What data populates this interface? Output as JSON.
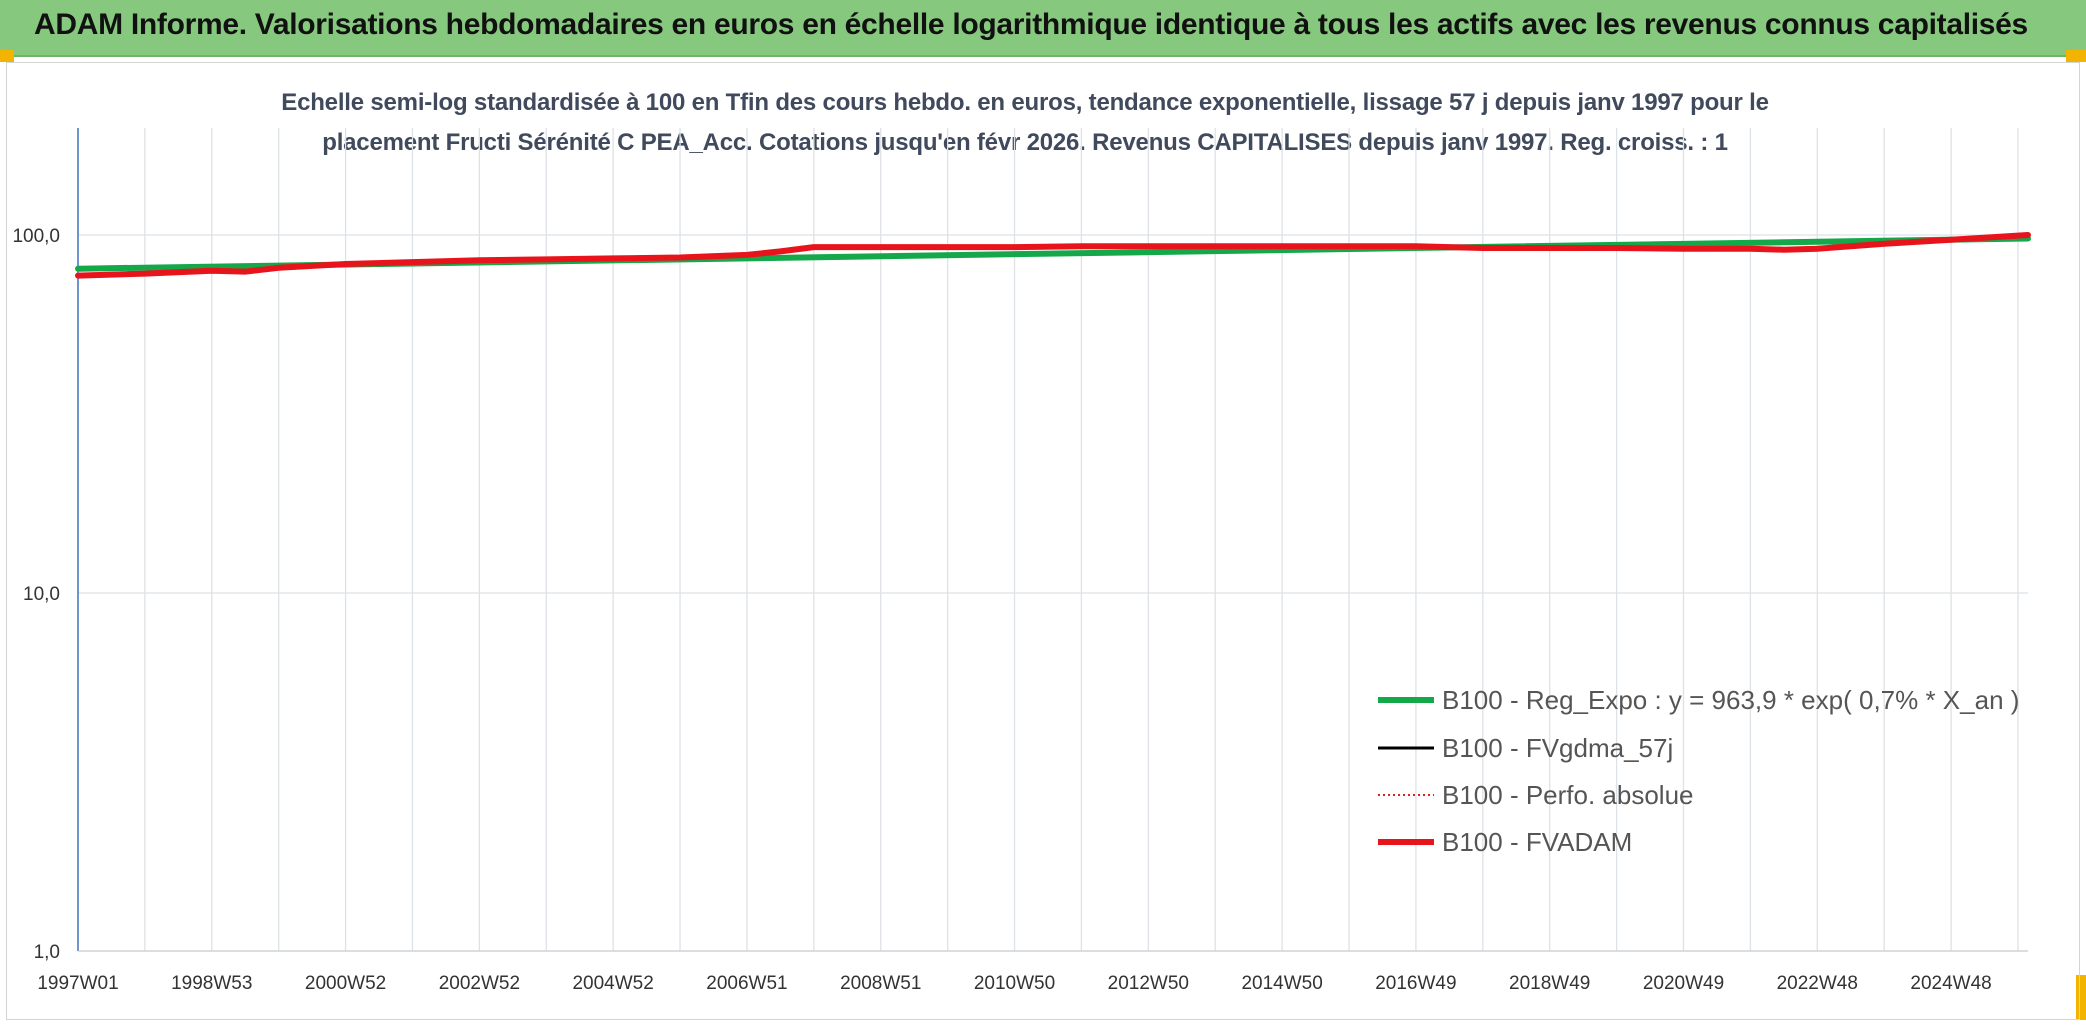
{
  "header": {
    "title": "ADAM Informe. Valorisations hebdomadaires en euros en échelle logarithmique identique à tous les actifs avec les revenus connus capitalisés"
  },
  "colors": {
    "header_bg": "#86c97e",
    "corner_accent": "#f2b400",
    "reg_expo": "#14a84a",
    "fvgdma": "#000000",
    "perfo": "#e0201c",
    "fvadam": "#e8141c"
  },
  "chart_data": {
    "type": "line",
    "title_line1": "Echelle semi-log standardisée à 100 en Tfin des cours hebdo. en euros, tendance exponentielle, lissage 57 j depuis janv 1997 pour le",
    "title_line2": "placement Fructi Sérénité C PEA_Acc. Cotations jusqu'en févr 2026. Revenus CAPITALISES depuis janv 1997. Reg. croiss. : 1",
    "y_scale": "log",
    "ylim": [
      1,
      200
    ],
    "y_ticks": [
      1,
      10,
      100
    ],
    "y_tick_labels": [
      "1,0",
      "10,0",
      "100,0"
    ],
    "xlim": [
      1997.0,
      2026.15
    ],
    "x_ticks": [
      1997.0,
      1999.0,
      2001.0,
      2003.0,
      2005.0,
      2007.0,
      2009.0,
      2011.0,
      2013.0,
      2015.0,
      2017.0,
      2019.0,
      2021.0,
      2023.0,
      2025.0
    ],
    "x_tick_labels": [
      "1997W01",
      "1998W53",
      "2000W52",
      "2002W52",
      "2004W52",
      "2006W51",
      "2008W51",
      "2010W50",
      "2012W50",
      "2014W50",
      "2016W49",
      "2018W49",
      "2020W49",
      "2022W48",
      "2024W48"
    ],
    "x_gridlines": [
      1997.0,
      1998.0,
      1999.0,
      2000.0,
      2001.0,
      2002.0,
      2003.0,
      2004.0,
      2005.0,
      2006.0,
      2007.0,
      2008.0,
      2009.0,
      2010.0,
      2011.0,
      2012.0,
      2013.0,
      2014.0,
      2015.0,
      2016.0,
      2017.0,
      2018.0,
      2019.0,
      2020.0,
      2021.0,
      2022.0,
      2023.0,
      2024.0,
      2025.0,
      2026.0
    ],
    "legend_position": "right, lower middle",
    "series": [
      {
        "name": "B100 - Reg_Expo : y = 963,9 * exp( 0,7% *  X_an )",
        "color": "#14a84a",
        "style": "solid",
        "x": [
          1997.0,
          2026.15
        ],
        "y": [
          80.5,
          97.8
        ]
      },
      {
        "name": "B100 - FVgdma_57j",
        "color": "#000000",
        "style": "solid",
        "x": [],
        "y": []
      },
      {
        "name": "B100 - Perfo. absolue",
        "color": "#e0201c",
        "style": "dotted",
        "x": [],
        "y": []
      },
      {
        "name": "B100 - FVADAM",
        "color": "#e8141c",
        "style": "solid",
        "x": [
          1997.0,
          1998.0,
          1999.0,
          1999.5,
          2000.0,
          2001.0,
          2002.0,
          2003.0,
          2004.0,
          2005.0,
          2006.0,
          2007.0,
          2007.5,
          2008.0,
          2009.0,
          2010.0,
          2011.0,
          2012.0,
          2013.0,
          2014.0,
          2015.0,
          2016.0,
          2017.0,
          2018.0,
          2019.0,
          2020.0,
          2021.0,
          2022.0,
          2022.5,
          2023.0,
          2024.0,
          2025.0,
          2026.15
        ],
        "y": [
          77.0,
          78.0,
          79.5,
          79.0,
          81.0,
          83.0,
          84.0,
          85.0,
          85.5,
          86.0,
          86.5,
          88.0,
          90.0,
          92.5,
          92.5,
          92.5,
          92.5,
          93.0,
          93.0,
          93.0,
          93.0,
          93.0,
          93.0,
          92.0,
          92.0,
          92.0,
          91.5,
          91.5,
          91.0,
          91.5,
          94.5,
          97.0,
          100.0
        ]
      }
    ]
  }
}
